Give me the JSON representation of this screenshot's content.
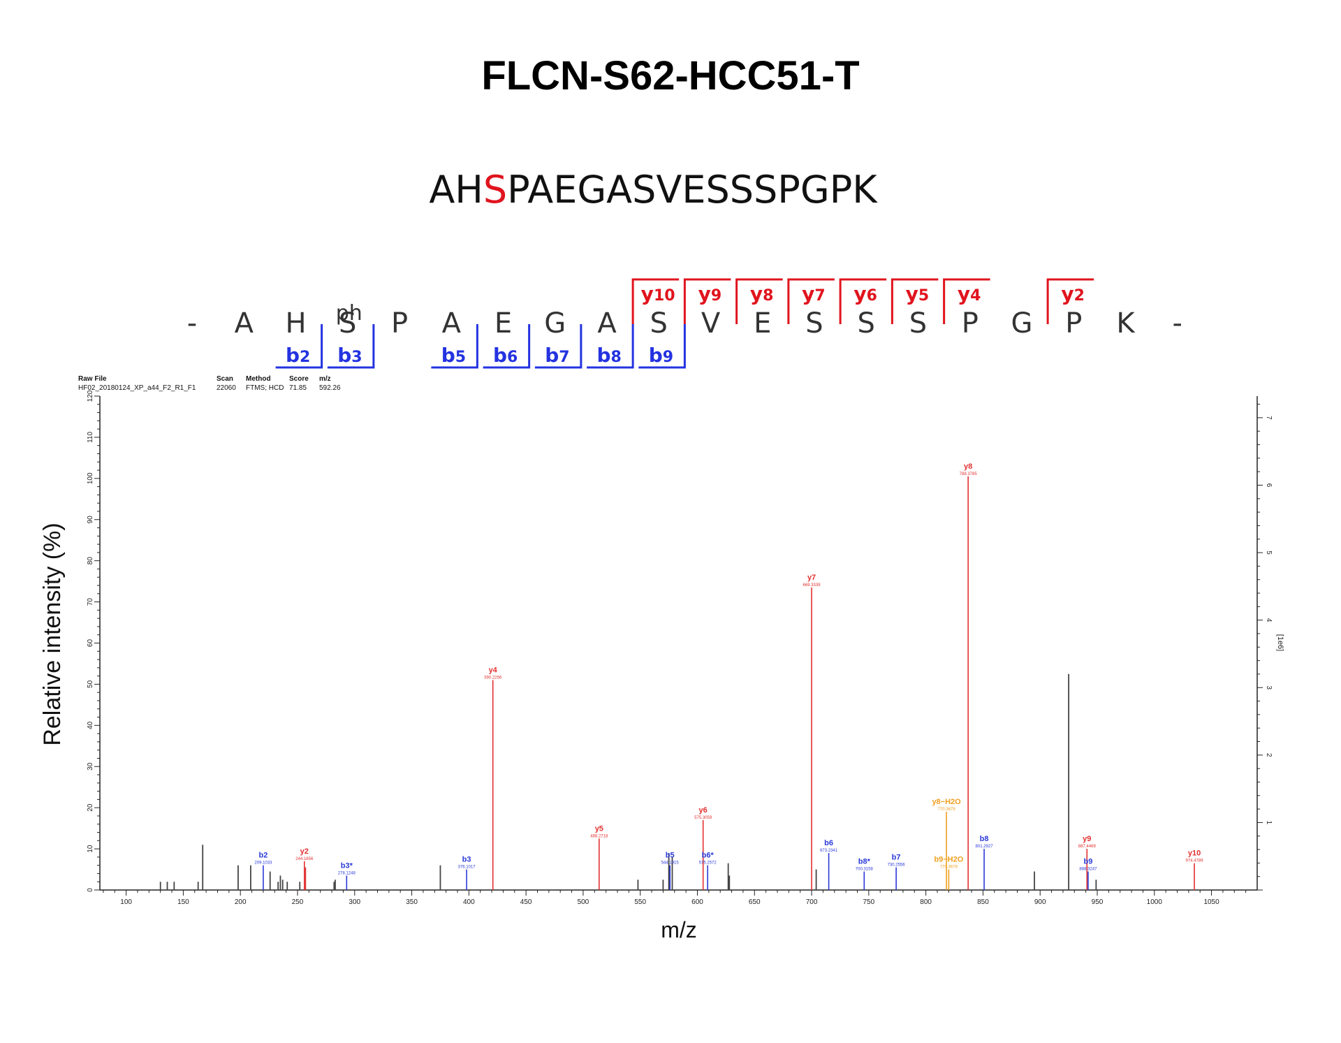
{
  "title": "FLCN-S62-HCC51-T",
  "peptide": {
    "before": "AH",
    "modified": "S",
    "after": "PAEGASVESSSPGPK",
    "highlight_color": "#e0141e"
  },
  "fragment_map": {
    "residues": [
      "-",
      "A",
      "H",
      "S",
      "P",
      "A",
      "E",
      "G",
      "A",
      "S",
      "V",
      "E",
      "S",
      "S",
      "S",
      "P",
      "G",
      "P",
      "K",
      "-"
    ],
    "mod_label": "ph",
    "mod_index": 3,
    "b_ions": [
      {
        "label": "b2",
        "after": 2
      },
      {
        "label": "b3",
        "after": 3
      },
      {
        "label": "b5",
        "after": 5
      },
      {
        "label": "b6",
        "after": 6
      },
      {
        "label": "b7",
        "after": 7
      },
      {
        "label": "b8",
        "after": 8
      },
      {
        "label": "b9",
        "after": 9
      }
    ],
    "y_ions": [
      {
        "label": "y10",
        "after": 8
      },
      {
        "label": "y9",
        "after": 9
      },
      {
        "label": "y8",
        "after": 10
      },
      {
        "label": "y7",
        "after": 11
      },
      {
        "label": "y6",
        "after": 12
      },
      {
        "label": "y5",
        "after": 13
      },
      {
        "label": "y4",
        "after": 14
      },
      {
        "label": "y2",
        "after": 16
      }
    ],
    "b_color": "#2433e0",
    "y_color": "#e0141e"
  },
  "header_table": {
    "columns": [
      "Raw File",
      "Scan",
      "Method",
      "Score",
      "m/z"
    ],
    "values": [
      "HF02_20180124_XP_a44_F2_R1_F1",
      "22060",
      "FTMS; HCD",
      "71.85",
      "592.26"
    ]
  },
  "chart_data": {
    "type": "bar",
    "xlabel": "m/z",
    "ylabel": "Relative intensity (%)",
    "xlim": [
      77,
      1090
    ],
    "ylim": [
      0,
      120
    ],
    "x_ticks": [
      100,
      150,
      200,
      250,
      300,
      350,
      400,
      450,
      500,
      550,
      600,
      650,
      700,
      750,
      800,
      850,
      900,
      950,
      1000,
      1050
    ],
    "y_ticks": [
      0,
      10,
      20,
      30,
      40,
      50,
      60,
      70,
      80,
      90,
      100,
      110,
      120
    ],
    "y2_ticks": [
      1,
      2,
      3,
      4,
      5,
      6,
      7
    ],
    "y2_label": "[1e6]",
    "y2_ratio": 0.061,
    "colors": {
      "unassigned": "#444444",
      "b": "#2a3ad8",
      "y": "#e23030",
      "neutral_loss": "#f0a020"
    },
    "peaks": [
      {
        "mz": 130,
        "i": 2
      },
      {
        "mz": 136,
        "i": 2
      },
      {
        "mz": 142,
        "i": 2
      },
      {
        "mz": 163,
        "i": 2
      },
      {
        "mz": 167,
        "i": 11
      },
      {
        "mz": 198,
        "i": 6
      },
      {
        "mz": 209,
        "i": 6
      },
      {
        "mz": 226,
        "i": 4.5
      },
      {
        "mz": 233,
        "i": 2
      },
      {
        "mz": 235,
        "i": 3.5
      },
      {
        "mz": 237,
        "i": 2.5
      },
      {
        "mz": 241,
        "i": 2
      },
      {
        "mz": 252,
        "i": 2
      },
      {
        "mz": 282,
        "i": 2
      },
      {
        "mz": 283,
        "i": 2.5
      },
      {
        "mz": 375,
        "i": 6
      },
      {
        "mz": 548,
        "i": 2.5
      },
      {
        "mz": 570,
        "i": 2.5
      },
      {
        "mz": 575,
        "i": 9
      },
      {
        "mz": 578,
        "i": 8
      },
      {
        "mz": 627,
        "i": 6.5
      },
      {
        "mz": 628,
        "i": 3.5
      },
      {
        "mz": 704,
        "i": 5
      },
      {
        "mz": 895,
        "i": 4.5
      },
      {
        "mz": 925,
        "i": 52.5
      },
      {
        "mz": 949,
        "i": 2.5
      },
      {
        "mz": 220,
        "i": 6,
        "ion": "b",
        "label": "b2",
        "value": "209.1033"
      },
      {
        "mz": 256,
        "i": 7,
        "ion": "y",
        "label": "y2",
        "value": "244.1656"
      },
      {
        "mz": 257,
        "i": 5.5,
        "ion": "y"
      },
      {
        "mz": 293,
        "i": 3.5,
        "ion": "b",
        "label": "b3*",
        "value": "278.1248"
      },
      {
        "mz": 398,
        "i": 5,
        "ion": "b",
        "label": "b3",
        "value": "376.1017"
      },
      {
        "mz": 421,
        "i": 51,
        "ion": "y",
        "label": "y4",
        "value": "390.2256"
      },
      {
        "mz": 514,
        "i": 12.5,
        "ion": "y",
        "label": "y5",
        "value": "488.2718"
      },
      {
        "mz": 576,
        "i": 6,
        "ion": "b",
        "label": "b5",
        "value": "544.1915"
      },
      {
        "mz": 605,
        "i": 17,
        "ion": "y",
        "label": "y6",
        "value": "575.3059"
      },
      {
        "mz": 609,
        "i": 6,
        "ion": "b",
        "label": "b6*",
        "value": "575.2572"
      },
      {
        "mz": 700,
        "i": 73.5,
        "ion": "y",
        "label": "y7",
        "value": "669.3339"
      },
      {
        "mz": 715,
        "i": 9,
        "ion": "b",
        "label": "b6",
        "value": "673.2341"
      },
      {
        "mz": 746,
        "i": 4.5,
        "ion": "b",
        "label": "b8*",
        "value": "700.3158"
      },
      {
        "mz": 774,
        "i": 5.5,
        "ion": "b",
        "label": "b7",
        "value": "730.2556"
      },
      {
        "mz": 818,
        "i": 19,
        "ion": "nl",
        "label": "y8−H2O",
        "value": "770.3679"
      },
      {
        "mz": 820,
        "i": 5,
        "ion": "nl",
        "label": "b9−H2O",
        "value": "770.3679"
      },
      {
        "mz": 837,
        "i": 100.5,
        "ion": "y",
        "label": "y8",
        "value": "788.3785"
      },
      {
        "mz": 851,
        "i": 10,
        "ion": "b",
        "label": "b8",
        "value": "801.2927"
      },
      {
        "mz": 941,
        "i": 10,
        "ion": "y",
        "label": "y9",
        "value": "887.4469"
      },
      {
        "mz": 942,
        "i": 4.5,
        "ion": "b",
        "label": "b9",
        "value": "888.3247"
      },
      {
        "mz": 1035,
        "i": 6.5,
        "ion": "y",
        "label": "y10",
        "value": "974.4789"
      }
    ]
  }
}
